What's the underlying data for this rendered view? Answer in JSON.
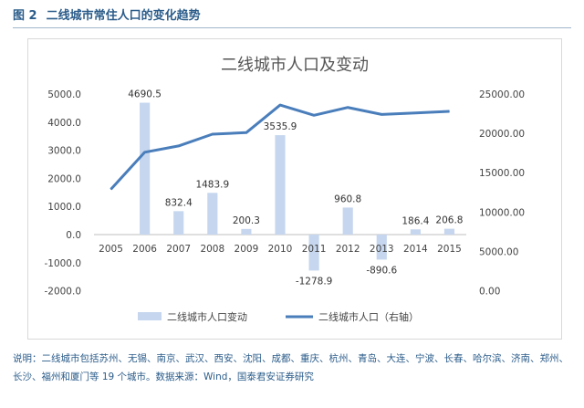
{
  "figure": {
    "number": "图 2",
    "caption": "二线城市常住人口的变化趋势"
  },
  "note": "说明：二线城市包括苏州、无锡、南京、武汉、西安、沈阳、成都、重庆、杭州、青岛、大连、宁波、长春、哈尔滨、济南、郑州、长沙、福州和厦门等 19 个城市。数据来源：Wind，国泰君安证券研究",
  "chart_data": {
    "type": "bar+line",
    "title": "二线城市人口及变动",
    "categories": [
      "2005",
      "2006",
      "2007",
      "2008",
      "2009",
      "2010",
      "2011",
      "2012",
      "2013",
      "2014",
      "2015"
    ],
    "series": [
      {
        "name": "二线城市人口变动",
        "type": "bar",
        "axis": "left",
        "color": "#c5d6ee",
        "values": [
          null,
          4690.5,
          832.4,
          1483.9,
          200.3,
          3535.9,
          -1278.9,
          960.8,
          -890.6,
          186.4,
          206.8
        ],
        "labels": [
          "",
          "4690.5",
          "832.4",
          "1483.9",
          "200.3",
          "3535.9",
          "-1278.9",
          "960.8",
          "-890.6",
          "186.4",
          "206.8"
        ]
      },
      {
        "name": "二线城市人口（右轴）",
        "type": "line",
        "axis": "right",
        "color": "#4a7ebb",
        "values": [
          12900,
          17600,
          18400,
          19900,
          20100,
          23600,
          22300,
          23300,
          22400,
          22600,
          22800
        ]
      }
    ],
    "y_left": {
      "min": -2000,
      "max": 5000,
      "ticks": [
        "5000.0",
        "4000.0",
        "3000.0",
        "2000.0",
        "1000.0",
        "0.0",
        "-1000.0",
        "-2000.0"
      ]
    },
    "y_right": {
      "min": 0,
      "max": 25000,
      "ticks": [
        "25000.00",
        "20000.00",
        "15000.00",
        "10000.00",
        "5000.00",
        "0.00"
      ]
    },
    "legend": "bottom"
  }
}
